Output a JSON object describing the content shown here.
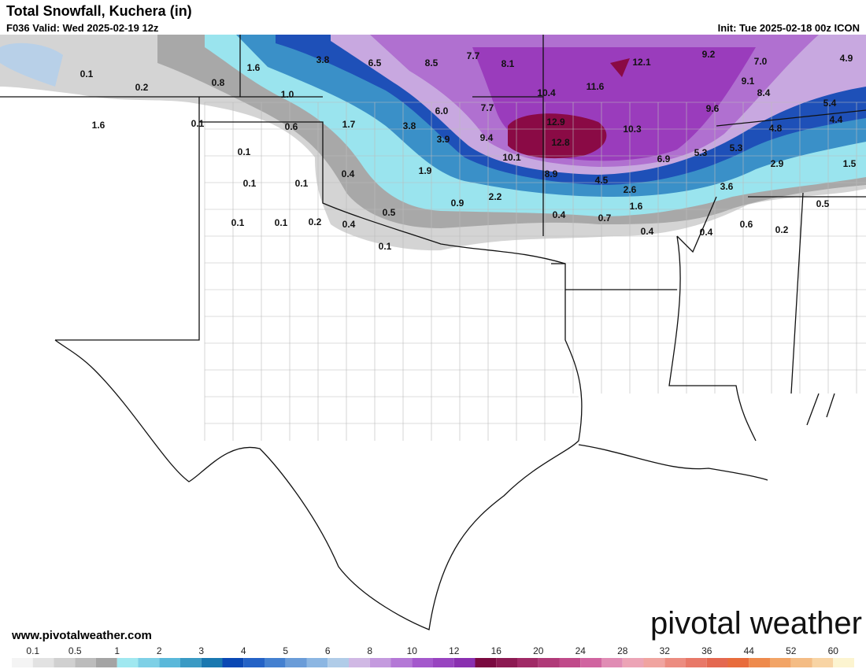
{
  "header": {
    "title": "Total Snowfall, Kuchera (in)",
    "valid": "F036 Valid: Wed 2025-02-19 12z",
    "init": "Init: Tue 2025-02-18 00z ICON"
  },
  "map_labels": [
    "0.1",
    "0.2",
    "1.6",
    "0.8",
    "1.6",
    "3.8",
    "6.5",
    "8.5",
    "7.7",
    "8.1",
    "12.1",
    "9.2",
    "7.0",
    "4.9",
    "1.0",
    "0.1",
    "0.6",
    "1.7",
    "3.8",
    "6.0",
    "7.7",
    "10.4",
    "11.6",
    "9.1",
    "8.4",
    "5.4",
    "12.9",
    "10.3",
    "9.6",
    "4.8",
    "4.4",
    "3.9",
    "9.4",
    "12.8",
    "0.1",
    "10.1",
    "6.9",
    "5.3",
    "5.3",
    "2.9",
    "1.5",
    "0.4",
    "1.9",
    "8.9",
    "4.5",
    "2.6",
    "3.6",
    "0.1",
    "0.1",
    "0.5",
    "0.9",
    "2.2",
    "1.6",
    "0.5",
    "0.4",
    "0.7",
    "0.1",
    "0.1",
    "0.2",
    "0.4",
    "0.4",
    "0.4",
    "0.6",
    "0.2",
    "0.1"
  ],
  "footer": {
    "website": "www.pivotalweather.com",
    "logo": "pivotal weather"
  },
  "colorbar": {
    "labels": [
      "0.1",
      "0.5",
      "1",
      "2",
      "3",
      "4",
      "5",
      "6",
      "8",
      "10",
      "12",
      "16",
      "20",
      "24",
      "28",
      "32",
      "36",
      "44",
      "52",
      "60"
    ]
  }
}
